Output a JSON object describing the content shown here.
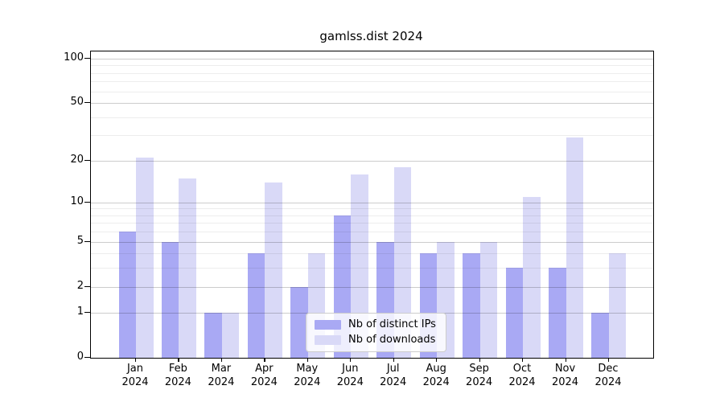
{
  "title": "gamlss.dist 2024",
  "chart_data": {
    "type": "bar",
    "title": "gamlss.dist 2024",
    "categories": [
      "Jan",
      "Feb",
      "Mar",
      "Apr",
      "May",
      "Jun",
      "Jul",
      "Aug",
      "Sep",
      "Oct",
      "Nov",
      "Dec"
    ],
    "year": "2024",
    "series": [
      {
        "name": "Nb of distinct IPs",
        "color": "#a9a9f4",
        "values": [
          6,
          5,
          1,
          4,
          2,
          8,
          5,
          4,
          4,
          3,
          3,
          1
        ]
      },
      {
        "name": "Nb of downloads",
        "color": "#d9d9f7",
        "values": [
          21,
          15,
          1,
          14,
          4,
          16,
          18,
          5,
          5,
          11,
          29,
          4
        ]
      }
    ],
    "xlabel": "",
    "ylabel": "",
    "yscale": "log1p",
    "yticks": [
      0,
      1,
      2,
      5,
      10,
      20,
      50,
      100
    ],
    "yticks_minor": [
      3,
      4,
      6,
      7,
      8,
      9,
      30,
      40,
      60,
      70,
      80,
      90
    ],
    "ylim": [
      0,
      113
    ],
    "grid": "horizontal",
    "legend_position": "lower center"
  }
}
